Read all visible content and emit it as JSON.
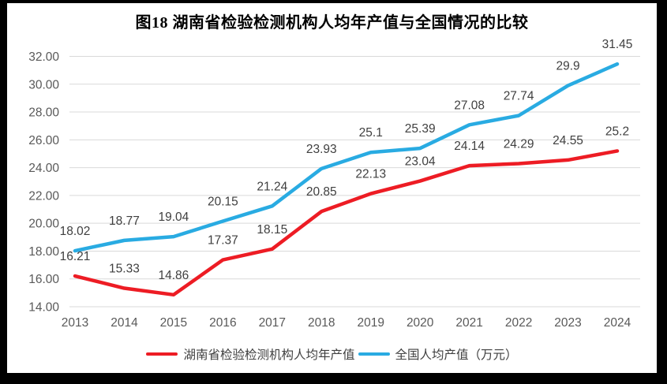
{
  "title": "图18 湖南省检验检测机构人均年产值与全国情况的比较",
  "chart_data": {
    "type": "line",
    "categories": [
      "2013",
      "2014",
      "2015",
      "2016",
      "2017",
      "2018",
      "2019",
      "2020",
      "2021",
      "2022",
      "2023",
      "2024"
    ],
    "series": [
      {
        "name": "湖南省检验检测机构人均年产值",
        "color": "#ED1C24",
        "values": [
          16.21,
          15.33,
          14.86,
          17.37,
          18.15,
          20.85,
          22.13,
          23.04,
          24.14,
          24.29,
          24.55,
          25.2
        ],
        "labels": [
          "16.21",
          "15.33",
          "14.86",
          "17.37",
          "18.15",
          "20.85",
          "22.13",
          "23.04",
          "24.14",
          "24.29",
          "24.55",
          "25.2"
        ]
      },
      {
        "name": "全国人均产值（万元）",
        "color": "#29ABE2",
        "values": [
          18.02,
          18.77,
          19.04,
          20.15,
          21.24,
          23.93,
          25.1,
          25.39,
          27.08,
          27.74,
          29.9,
          31.45
        ],
        "labels": [
          "18.02",
          "18.77",
          "19.04",
          "20.15",
          "21.24",
          "23.93",
          "25.1",
          "25.39",
          "27.08",
          "27.74",
          "29.9",
          "31.45"
        ]
      }
    ],
    "title": "图18 湖南省检验检测机构人均年产值与全国情况的比较",
    "xlabel": "",
    "ylabel": "",
    "ylim": [
      14,
      32
    ],
    "ytick_step": 2,
    "yticks": [
      "14.00",
      "16.00",
      "18.00",
      "20.00",
      "22.00",
      "24.00",
      "26.00",
      "28.00",
      "30.00",
      "32.00"
    ],
    "grid": true,
    "gridline_color": "#D9D9D9",
    "legend_position": "bottom"
  }
}
